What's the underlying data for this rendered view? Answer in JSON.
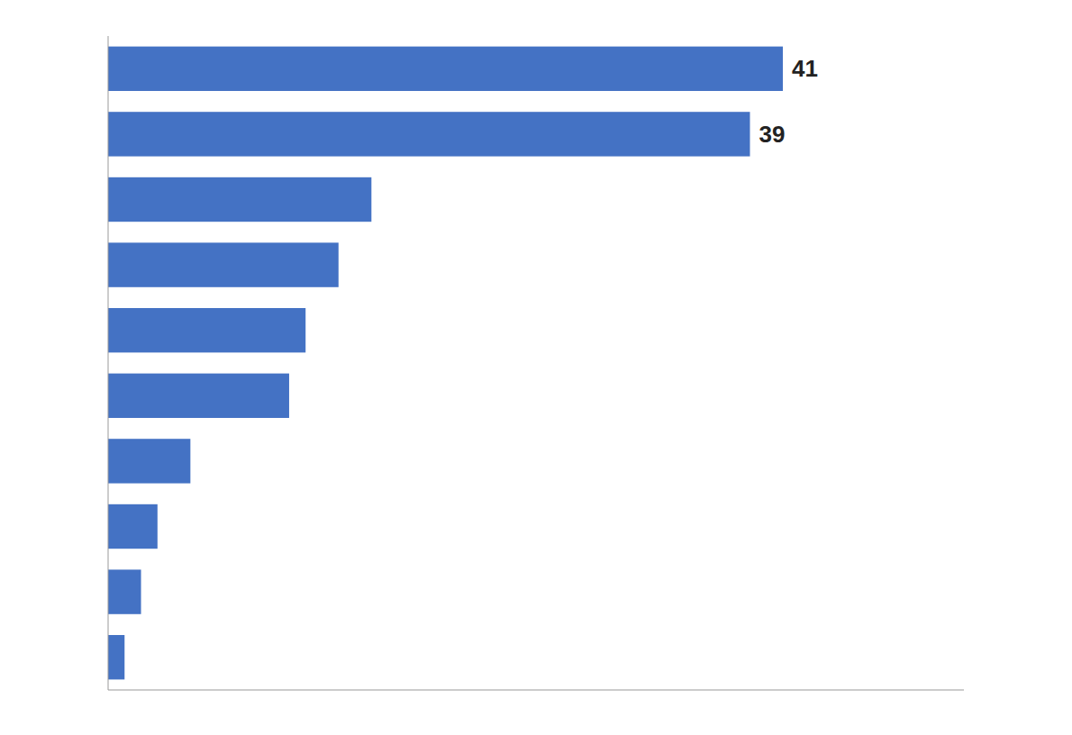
{
  "chart_data": {
    "type": "bar",
    "orientation": "horizontal",
    "values": [
      41,
      39,
      16,
      14,
      12,
      11,
      5,
      3,
      2,
      1
    ],
    "value_labels": [
      "41",
      "39",
      null,
      null,
      null,
      null,
      null,
      null,
      null,
      null
    ],
    "data_labels": true,
    "color": "#4472C4",
    "xlim": [
      0,
      52
    ],
    "tick_labels": false,
    "grid": false
  }
}
